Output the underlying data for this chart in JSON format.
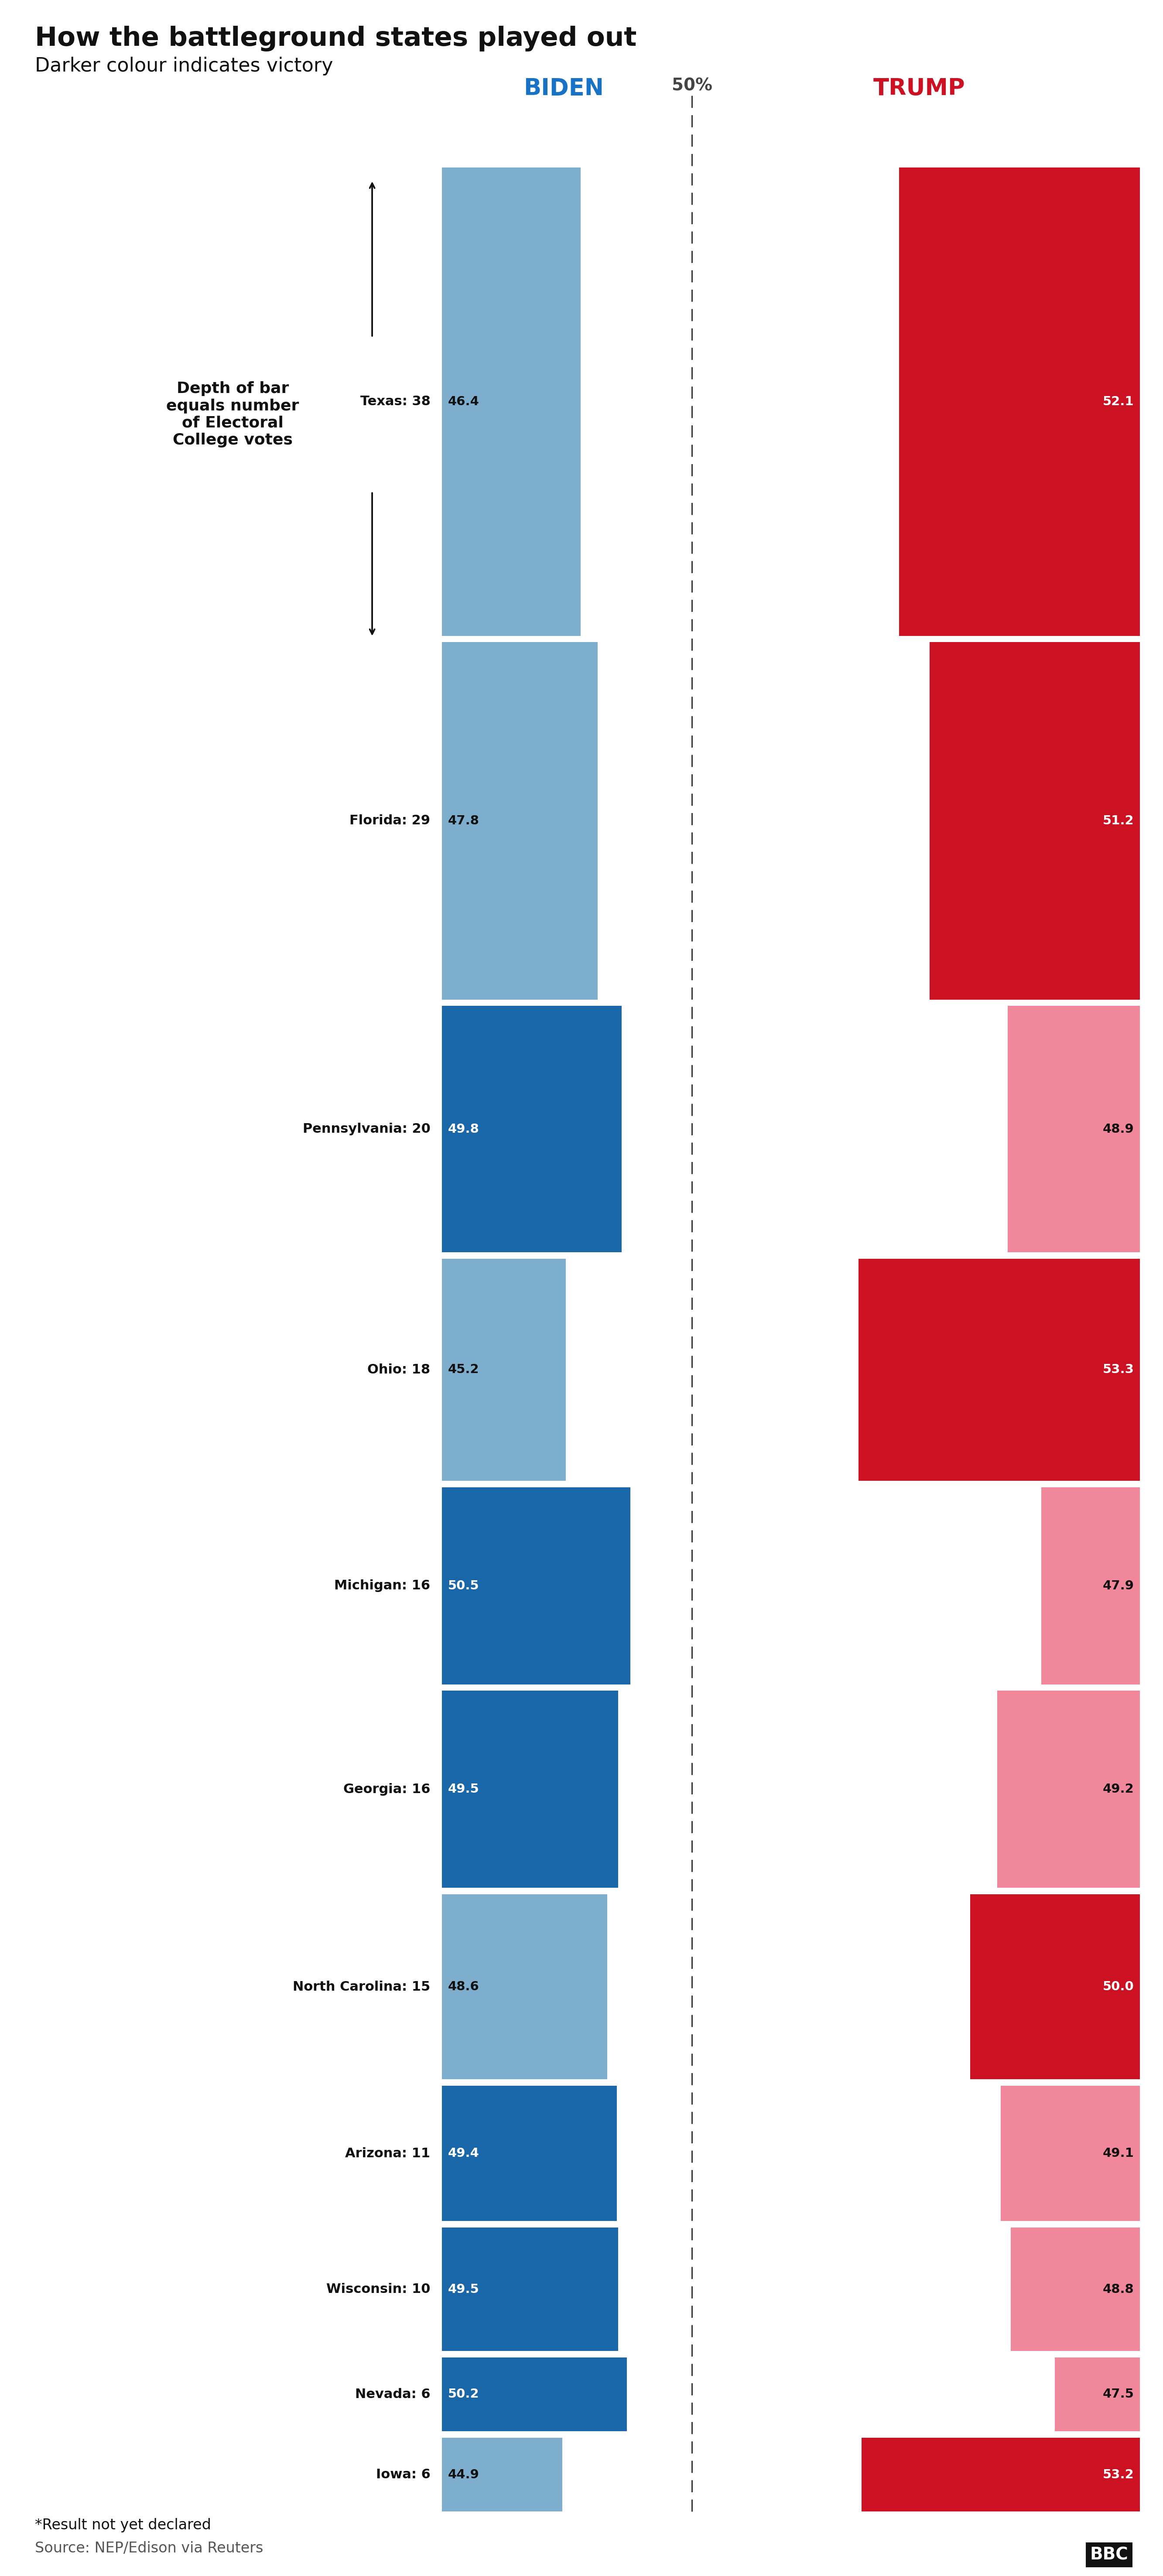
{
  "title": "How the battleground states played out",
  "subtitle": "Darker colour indicates victory",
  "header_biden": "BIDEN",
  "header_trump": "TRUMP",
  "header_50": "50%",
  "states": [
    {
      "name": "Texas",
      "ev": 38,
      "biden": 46.4,
      "trump": 52.1,
      "winner": "trump"
    },
    {
      "name": "Florida",
      "ev": 29,
      "biden": 47.8,
      "trump": 51.2,
      "winner": "trump"
    },
    {
      "name": "Pennsylvania",
      "ev": 20,
      "biden": 49.8,
      "trump": 48.9,
      "winner": "biden"
    },
    {
      "name": "Ohio",
      "ev": 18,
      "biden": 45.2,
      "trump": 53.3,
      "winner": "trump"
    },
    {
      "name": "Michigan",
      "ev": 16,
      "biden": 50.5,
      "trump": 47.9,
      "winner": "biden"
    },
    {
      "name": "Georgia",
      "ev": 16,
      "biden": 49.5,
      "trump": 49.2,
      "winner": "biden"
    },
    {
      "name": "North Carolina",
      "ev": 15,
      "biden": 48.6,
      "trump": 50.0,
      "winner": "trump"
    },
    {
      "name": "Arizona",
      "ev": 11,
      "biden": 49.4,
      "trump": 49.1,
      "winner": "biden"
    },
    {
      "name": "Wisconsin",
      "ev": 10,
      "biden": 49.5,
      "trump": 48.8,
      "winner": "biden"
    },
    {
      "name": "Nevada",
      "ev": 6,
      "biden": 50.2,
      "trump": 47.5,
      "winner": "biden"
    },
    {
      "name": "Iowa",
      "ev": 6,
      "biden": 44.9,
      "trump": 53.2,
      "winner": "trump"
    }
  ],
  "colors": {
    "biden_win": "#1967a8",
    "biden_lose": "#7eaece",
    "trump_win": "#cc1122",
    "trump_lose": "#f0879a",
    "biden_header": "#1872c6",
    "trump_header": "#cc1122",
    "dashed_line": "#222222",
    "background": "#ffffff",
    "label_color": "#111111",
    "source_color": "#555555",
    "separator": "#cccccc"
  },
  "footer_note": "*Result not yet declared",
  "footer_source": "Source: NEP/Edison via Reuters",
  "annotation_text": "Depth of bar\nequals number\nof Electoral\nCollege votes",
  "biden_pct_min": 40.0,
  "biden_pct_max": 55.0,
  "trump_pct_min": 45.0,
  "trump_pct_max": 58.0,
  "fifty_line_pct": 50.0
}
